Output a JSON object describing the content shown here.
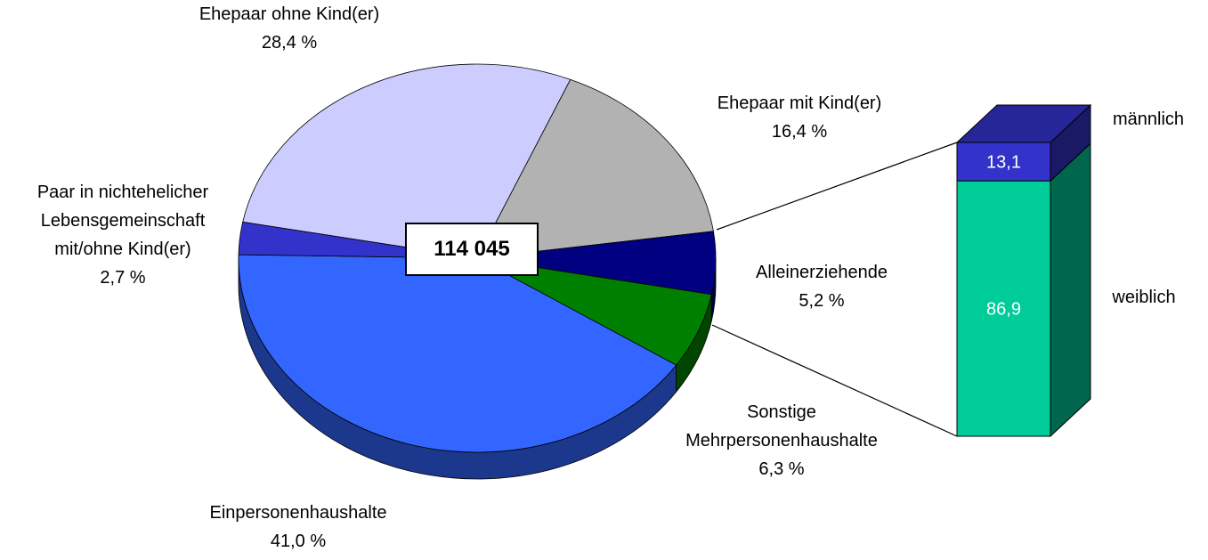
{
  "chart_data": [
    {
      "type": "pie",
      "categories": [
        "Ehepaar mit Kind(er)",
        "Alleinerziehende",
        "Sonstige\nMehrpersonenhaushalte",
        "Einpersonenhaushalte",
        "Paar in nichtehelicher\nLebensgemeinschaft\nmit/ohne Kind(er)",
        "Ehepaar ohne Kind(er)"
      ],
      "values": [
        16.4,
        5.2,
        6.3,
        41.0,
        2.7,
        28.4
      ],
      "value_labels": [
        "16,4 %",
        "5,2 %",
        "6,3 %",
        "41,0 %",
        "2,7 %",
        "28,4 %"
      ],
      "colors": [
        "#b2b2b2",
        "#000080",
        "#008000",
        "#3366ff",
        "#3333cc",
        "#ccccff"
      ],
      "annotation": "114 045"
    },
    {
      "type": "bar",
      "stacked": true,
      "series": [
        {
          "name": "männlich",
          "color": "#3333cc",
          "values": [
            13.1
          ],
          "value_labels": [
            "13,1"
          ]
        },
        {
          "name": "weiblich",
          "color": "#00cc99",
          "values": [
            86.9
          ],
          "value_labels": [
            "86,9"
          ]
        }
      ]
    }
  ]
}
